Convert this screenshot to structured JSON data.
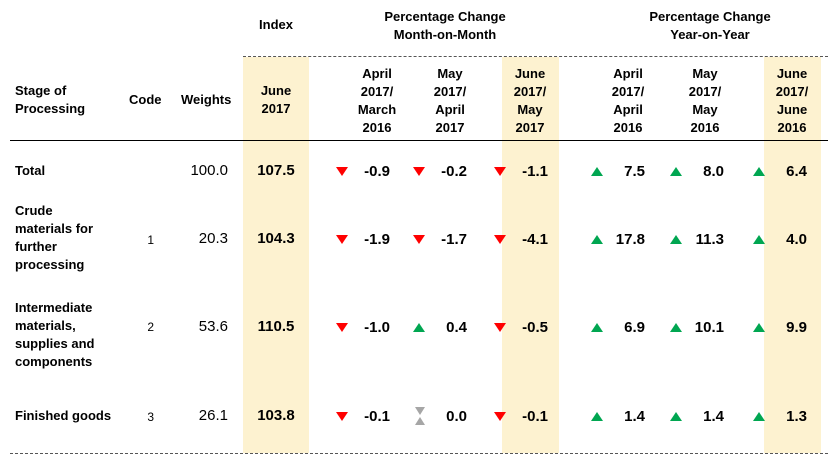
{
  "headers": {
    "index": "Index",
    "mom": "Percentage Change\nMonth-on-Month",
    "yoy": "Percentage Change\nYear-on-Year",
    "stage": "Stage of\nProcessing",
    "code": "Code",
    "weights": "Weights",
    "index_col": "June\n2017",
    "mom_cols": [
      "April\n2017/\nMarch\n2016",
      "May\n2017/\nApril\n2017",
      "June\n2017/\nMay\n2017"
    ],
    "yoy_cols": [
      "April\n2017/\nApril\n2016",
      "May\n2017/\nMay\n2016",
      "June\n2017/\nJune\n2016"
    ]
  },
  "colors": {
    "highlight": "#fdf2d0",
    "down": "#ff0000",
    "up": "#00a651",
    "flat": "#a6a6a6"
  },
  "rows": [
    {
      "stage": "Total",
      "code": "",
      "weight": "100.0",
      "index": "107.5",
      "mom": [
        {
          "v": "-0.9",
          "dir": "down"
        },
        {
          "v": "-0.2",
          "dir": "down"
        },
        {
          "v": "-1.1",
          "dir": "down"
        }
      ],
      "yoy": [
        {
          "v": "7.5",
          "dir": "up"
        },
        {
          "v": "8.0",
          "dir": "up"
        },
        {
          "v": "6.4",
          "dir": "up"
        }
      ]
    },
    {
      "stage": "Crude\nmaterials for\nfurther\nprocessing",
      "code": "1",
      "weight": "20.3",
      "index": "104.3",
      "mom": [
        {
          "v": "-1.9",
          "dir": "down"
        },
        {
          "v": "-1.7",
          "dir": "down"
        },
        {
          "v": "-4.1",
          "dir": "down"
        }
      ],
      "yoy": [
        {
          "v": "17.8",
          "dir": "up"
        },
        {
          "v": "11.3",
          "dir": "up"
        },
        {
          "v": "4.0",
          "dir": "up"
        }
      ]
    },
    {
      "stage": "Intermediate\nmaterials,\nsupplies and\ncomponents",
      "code": "2",
      "weight": "53.6",
      "index": "110.5",
      "mom": [
        {
          "v": "-1.0",
          "dir": "down"
        },
        {
          "v": "0.4",
          "dir": "up"
        },
        {
          "v": "-0.5",
          "dir": "down"
        }
      ],
      "yoy": [
        {
          "v": "6.9",
          "dir": "up"
        },
        {
          "v": "10.1",
          "dir": "up"
        },
        {
          "v": "9.9",
          "dir": "up"
        }
      ]
    },
    {
      "stage": "Finished goods",
      "code": "3",
      "weight": "26.1",
      "index": "103.8",
      "mom": [
        {
          "v": "-0.1",
          "dir": "down"
        },
        {
          "v": "0.0",
          "dir": "flat"
        },
        {
          "v": "-0.1",
          "dir": "down"
        }
      ],
      "yoy": [
        {
          "v": "1.4",
          "dir": "up"
        },
        {
          "v": "1.4",
          "dir": "up"
        },
        {
          "v": "1.3",
          "dir": "up"
        }
      ]
    }
  ]
}
